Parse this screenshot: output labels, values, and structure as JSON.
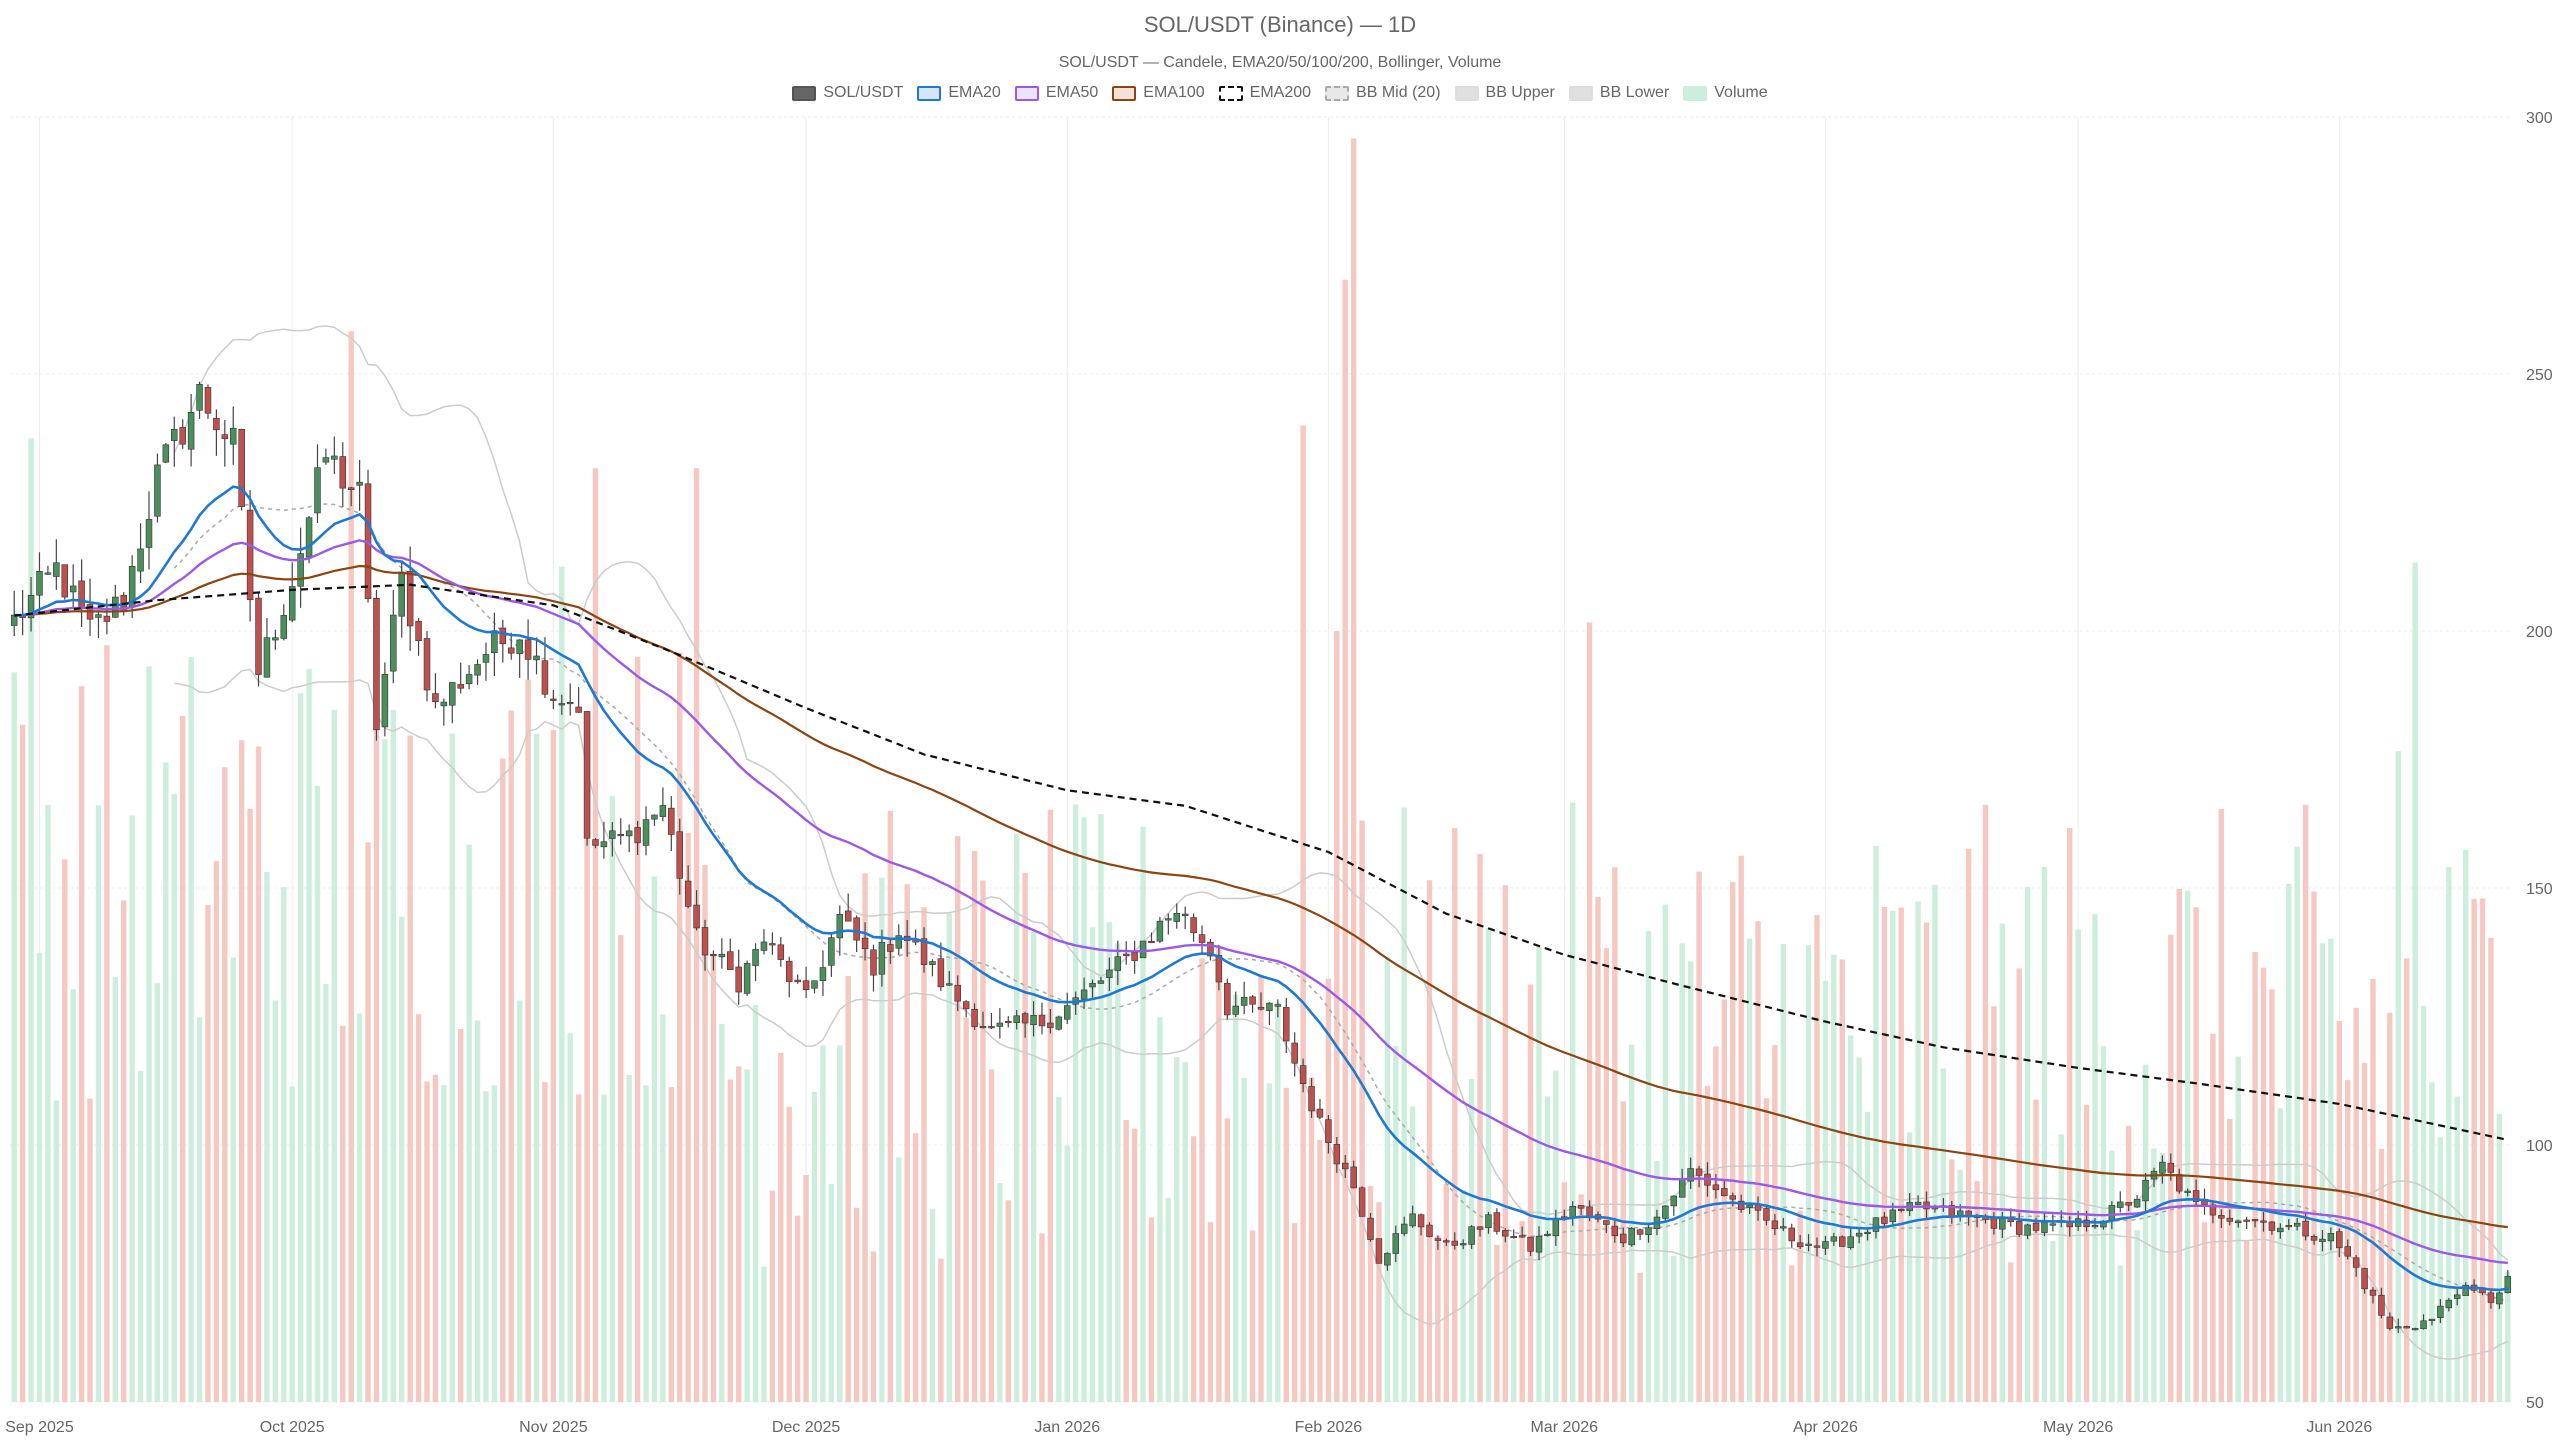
{
  "chart_data": {
    "type": "candlestick",
    "title": "SOL/USDT (Binance) — 1D",
    "subtitle": "SOL/USDT — Candele, EMA20/50/100/200, Bollinger, Volume",
    "ylim": [
      50,
      300
    ],
    "yticks": [
      50,
      100,
      150,
      200,
      250,
      300
    ],
    "x_range": [
      "2025-08-29",
      "2026-06-21"
    ],
    "x_ticks": [
      {
        "date": "2025-09-01",
        "label": "Sep 2025"
      },
      {
        "date": "2025-10-01",
        "label": "Oct 2025"
      },
      {
        "date": "2025-11-01",
        "label": "Nov 2025"
      },
      {
        "date": "2025-12-01",
        "label": "Dec 2025"
      },
      {
        "date": "2026-01-01",
        "label": "Jan 2026"
      },
      {
        "date": "2026-02-01",
        "label": "Feb 2026"
      },
      {
        "date": "2026-03-01",
        "label": "Mar 2026"
      },
      {
        "date": "2026-04-01",
        "label": "Apr 2026"
      },
      {
        "date": "2026-05-01",
        "label": "May 2026"
      },
      {
        "date": "2026-06-01",
        "label": "Jun 2026"
      }
    ],
    "grid": true,
    "legend_position": "top-center",
    "legend": [
      {
        "label": "SOL/USDT",
        "fill": "#666666",
        "stroke": "#555555",
        "dashed": false
      },
      {
        "label": "EMA20",
        "fill": "#d6e6f7",
        "stroke": "#1f78d1",
        "dashed": false
      },
      {
        "label": "EMA50",
        "fill": "#ece4f9",
        "stroke": "#9b59e6",
        "dashed": false
      },
      {
        "label": "EMA100",
        "fill": "#f1e3d6",
        "stroke": "#8b4513",
        "dashed": false
      },
      {
        "label": "EMA200",
        "fill": "#ffffff",
        "stroke": "#111111",
        "dashed": true
      },
      {
        "label": "BB Mid (20)",
        "fill": "#e8e8e8",
        "stroke": "#aaaaaa",
        "dashed": true
      },
      {
        "label": "BB Upper",
        "fill": "#e0e0e0",
        "stroke": "#dddddd",
        "dashed": false
      },
      {
        "label": "BB Lower",
        "fill": "#e0e0e0",
        "stroke": "#dddddd",
        "dashed": false
      },
      {
        "label": "Volume",
        "fill": "#cdeedd",
        "stroke": "#cdeedd",
        "dashed": false
      }
    ],
    "colors": {
      "up": "#4a8f5c",
      "down": "#c0504d",
      "wick": "#444444",
      "volume_up": "#cdeedd",
      "volume_down": "#f5c9c1",
      "ema20": "#1f78d1",
      "ema50": "#9b59e6",
      "ema100": "#8b4513",
      "ema200": "#111111",
      "bb_mid": "#aaaaaa",
      "bb_band": "#cccccc",
      "grid": "#ececec"
    },
    "price_anchors": [
      [
        "2025-08-29",
        202
      ],
      [
        "2025-09-03",
        212
      ],
      [
        "2025-09-07",
        200
      ],
      [
        "2025-09-11",
        206
      ],
      [
        "2025-09-15",
        230
      ],
      [
        "2025-09-20",
        246
      ],
      [
        "2025-09-24",
        236
      ],
      [
        "2025-09-27",
        192
      ],
      [
        "2025-10-01",
        210
      ],
      [
        "2025-10-05",
        234
      ],
      [
        "2025-10-09",
        226
      ],
      [
        "2025-10-11",
        182
      ],
      [
        "2025-10-14",
        210
      ],
      [
        "2025-10-18",
        185
      ],
      [
        "2025-10-24",
        196
      ],
      [
        "2025-10-28",
        200
      ],
      [
        "2025-11-01",
        188
      ],
      [
        "2025-11-04",
        186
      ],
      [
        "2025-11-05",
        158
      ],
      [
        "2025-11-10",
        160
      ],
      [
        "2025-11-14",
        166
      ],
      [
        "2025-11-18",
        140
      ],
      [
        "2025-11-23",
        132
      ],
      [
        "2025-11-26",
        140
      ],
      [
        "2025-12-01",
        128
      ],
      [
        "2025-12-05",
        144
      ],
      [
        "2025-12-09",
        135
      ],
      [
        "2025-12-12",
        142
      ],
      [
        "2025-12-18",
        130
      ],
      [
        "2025-12-23",
        122
      ],
      [
        "2025-12-29",
        124
      ],
      [
        "2026-01-02",
        128
      ],
      [
        "2026-01-08",
        136
      ],
      [
        "2026-01-14",
        146
      ],
      [
        "2026-01-18",
        138
      ],
      [
        "2026-01-20",
        127
      ],
      [
        "2026-01-26",
        126
      ],
      [
        "2026-01-28",
        116
      ],
      [
        "2026-01-31",
        104
      ],
      [
        "2026-02-04",
        92
      ],
      [
        "2026-02-07",
        78
      ],
      [
        "2026-02-11",
        86
      ],
      [
        "2026-02-15",
        80
      ],
      [
        "2026-02-20",
        85
      ],
      [
        "2026-02-25",
        80
      ],
      [
        "2026-03-02",
        88
      ],
      [
        "2026-03-08",
        82
      ],
      [
        "2026-03-12",
        86
      ],
      [
        "2026-03-16",
        95
      ],
      [
        "2026-03-22",
        88
      ],
      [
        "2026-03-28",
        82
      ],
      [
        "2026-04-01",
        80
      ],
      [
        "2026-04-06",
        84
      ],
      [
        "2026-04-12",
        88
      ],
      [
        "2026-04-18",
        86
      ],
      [
        "2026-04-24",
        84
      ],
      [
        "2026-04-30",
        84
      ],
      [
        "2026-05-04",
        86
      ],
      [
        "2026-05-08",
        90
      ],
      [
        "2026-05-11",
        96
      ],
      [
        "2026-05-15",
        88
      ],
      [
        "2026-05-20",
        86
      ],
      [
        "2026-05-26",
        84
      ],
      [
        "2026-05-31",
        82
      ],
      [
        "2026-06-03",
        76
      ],
      [
        "2026-06-07",
        64
      ],
      [
        "2026-06-12",
        66
      ],
      [
        "2026-06-15",
        72
      ],
      [
        "2026-06-19",
        70
      ],
      [
        "2026-06-21",
        74
      ]
    ],
    "ema200_anchors": [
      [
        "2025-08-29",
        203
      ],
      [
        "2025-09-15",
        206
      ],
      [
        "2025-10-01",
        208
      ],
      [
        "2025-10-15",
        209
      ],
      [
        "2025-11-01",
        205
      ],
      [
        "2025-11-15",
        196
      ],
      [
        "2025-12-01",
        185
      ],
      [
        "2025-12-15",
        176
      ],
      [
        "2026-01-01",
        169
      ],
      [
        "2026-01-15",
        166
      ],
      [
        "2026-02-01",
        157
      ],
      [
        "2026-02-15",
        145
      ],
      [
        "2026-03-01",
        137
      ],
      [
        "2026-03-15",
        131
      ],
      [
        "2026-04-01",
        124
      ],
      [
        "2026-04-15",
        119
      ],
      [
        "2026-05-01",
        115
      ],
      [
        "2026-05-15",
        112
      ],
      [
        "2026-06-01",
        108
      ],
      [
        "2026-06-21",
        101
      ]
    ],
    "volume_spikes": [
      [
        "2025-08-31",
        225
      ],
      [
        "2025-10-08",
        250
      ],
      [
        "2025-11-02",
        195
      ],
      [
        "2025-11-06",
        218
      ],
      [
        "2025-11-16",
        175
      ],
      [
        "2025-11-18",
        218
      ],
      [
        "2026-01-29",
        228
      ],
      [
        "2026-02-02",
        180
      ],
      [
        "2026-02-03",
        262
      ],
      [
        "2026-02-04",
        295
      ],
      [
        "2026-03-04",
        182
      ],
      [
        "2026-06-10",
        196
      ],
      [
        "2026-06-08",
        152
      ]
    ],
    "volume_range": [
      0,
      300
    ]
  }
}
